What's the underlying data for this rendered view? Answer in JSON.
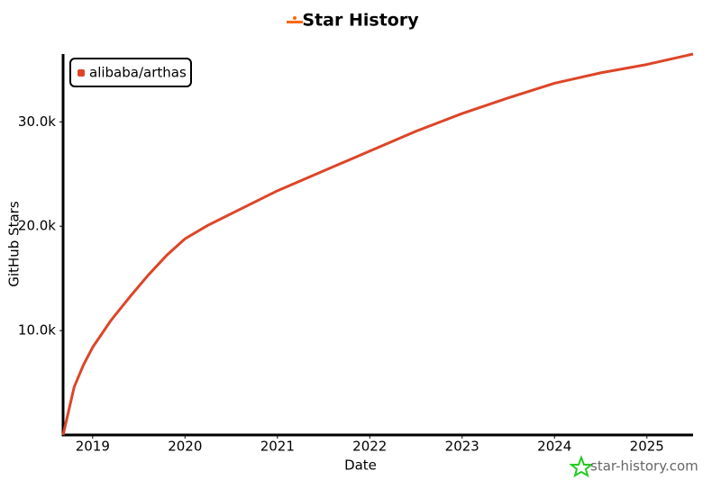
{
  "chart_data": {
    "type": "line",
    "title": "Star History",
    "x_label": "Date",
    "y_label": "GitHub Stars",
    "x": [
      2018.68,
      2018.8,
      2018.9,
      2019.0,
      2019.2,
      2019.4,
      2019.6,
      2019.8,
      2020.0,
      2020.25,
      2020.5,
      2021.0,
      2021.5,
      2022.0,
      2022.5,
      2023.0,
      2023.5,
      2024.0,
      2024.5,
      2025.0,
      2025.5
    ],
    "series": [
      {
        "name": "alibaba/arthas",
        "color": "#dd4528",
        "values": [
          0,
          4600,
          6700,
          8400,
          11000,
          13200,
          15300,
          17200,
          18800,
          20100,
          21200,
          23400,
          25300,
          27200,
          29100,
          30800,
          32300,
          33700,
          34700,
          35500,
          36500
        ]
      }
    ],
    "xlim": [
      2018.68,
      2025.5
    ],
    "xticks": [
      2019,
      2020,
      2021,
      2022,
      2023,
      2024,
      2025
    ],
    "ylim": [
      0,
      36500
    ],
    "yticks": [
      {
        "value": 10000,
        "label": "10.0k"
      },
      {
        "value": 20000,
        "label": "20.0k"
      },
      {
        "value": 30000,
        "label": "30.0k"
      }
    ],
    "legend_position": "top-left",
    "footer": "star-history.com"
  }
}
